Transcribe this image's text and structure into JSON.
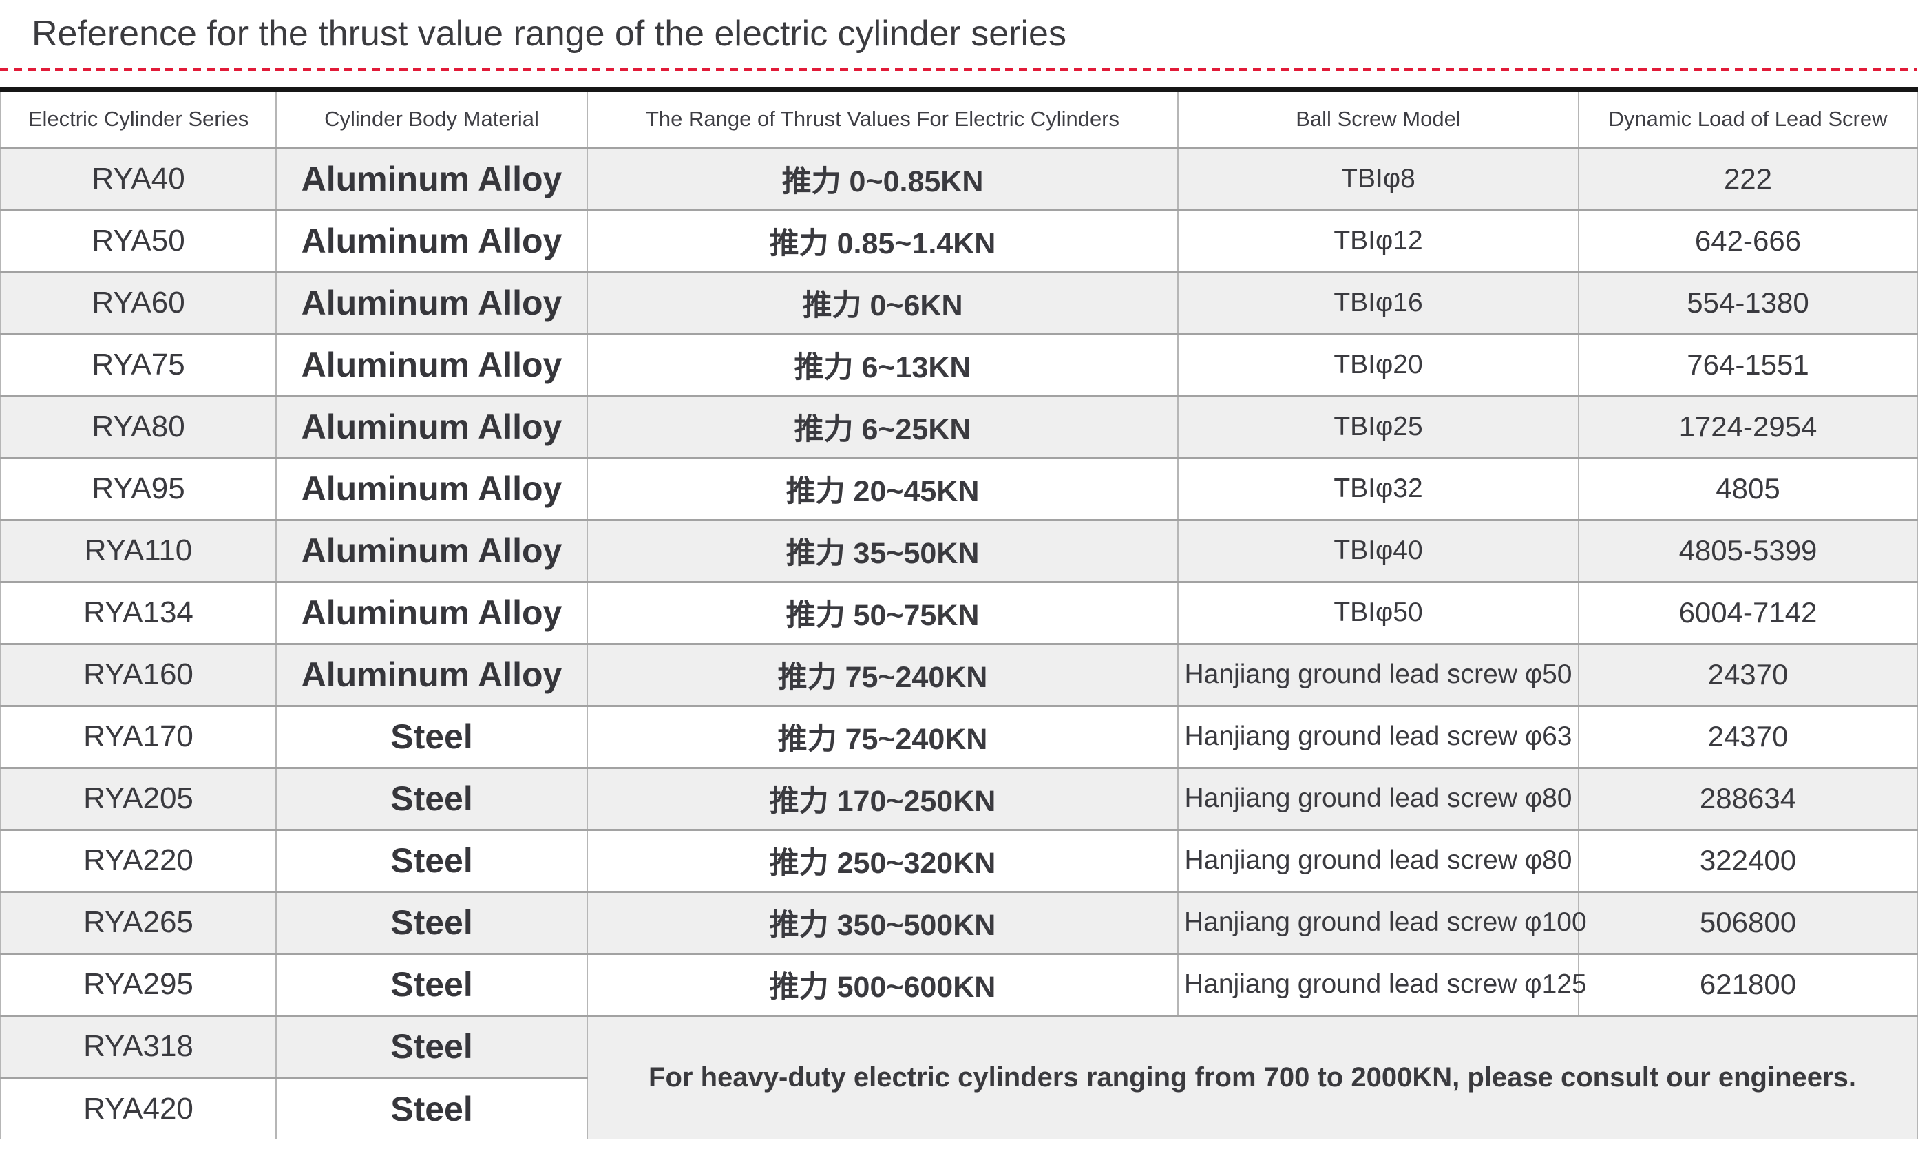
{
  "page": {
    "title": "Reference for the thrust value range of the electric cylinder series",
    "accent_color": "#e11b38"
  },
  "table": {
    "headers": [
      "Electric Cylinder Series",
      "Cylinder Body Material",
      "The Range of Thrust Values For Electric Cylinders",
      "Ball Screw Model",
      "Dynamic Load of Lead Screw"
    ],
    "rows": [
      {
        "series": "RYA40",
        "material": "Aluminum Alloy",
        "thrust": "推力 0~0.85KN",
        "screw": "TBIφ8",
        "load": "222"
      },
      {
        "series": "RYA50",
        "material": "Aluminum Alloy",
        "thrust": "推力 0.85~1.4KN",
        "screw": "TBIφ12",
        "load": "642-666"
      },
      {
        "series": "RYA60",
        "material": "Aluminum Alloy",
        "thrust": "推力 0~6KN",
        "screw": "TBIφ16",
        "load": "554-1380"
      },
      {
        "series": "RYA75",
        "material": "Aluminum Alloy",
        "thrust": "推力 6~13KN",
        "screw": "TBIφ20",
        "load": "764-1551"
      },
      {
        "series": "RYA80",
        "material": "Aluminum Alloy",
        "thrust": "推力 6~25KN",
        "screw": "TBIφ25",
        "load": "1724-2954"
      },
      {
        "series": "RYA95",
        "material": "Aluminum Alloy",
        "thrust": "推力 20~45KN",
        "screw": "TBIφ32",
        "load": "4805"
      },
      {
        "series": "RYA110",
        "material": "Aluminum Alloy",
        "thrust": "推力 35~50KN",
        "screw": "TBIφ40",
        "load": "4805-5399"
      },
      {
        "series": "RYA134",
        "material": "Aluminum Alloy",
        "thrust": "推力 50~75KN",
        "screw": "TBIφ50",
        "load": "6004-7142"
      },
      {
        "series": "RYA160",
        "material": "Aluminum Alloy",
        "thrust": "推力 75~240KN",
        "screw": "Hanjiang ground lead screw φ50",
        "load": "24370"
      },
      {
        "series": "RYA170",
        "material": "Steel",
        "thrust": "推力 75~240KN",
        "screw": "Hanjiang ground lead screw φ63",
        "load": "24370"
      },
      {
        "series": "RYA205",
        "material": "Steel",
        "thrust": "推力 170~250KN",
        "screw": "Hanjiang ground lead screw φ80",
        "load": "288634"
      },
      {
        "series": "RYA220",
        "material": "Steel",
        "thrust": "推力 250~320KN",
        "screw": "Hanjiang ground lead screw φ80",
        "load": "322400"
      },
      {
        "series": "RYA265",
        "material": "Steel",
        "thrust": "推力 350~500KN",
        "screw": "Hanjiang ground lead screw φ100",
        "load": "506800"
      },
      {
        "series": "RYA295",
        "material": "Steel",
        "thrust": "推力 500~600KN",
        "screw": "Hanjiang ground lead screw φ125",
        "load": "621800"
      }
    ],
    "footer_rows": [
      {
        "series": "RYA318",
        "material": "Steel"
      },
      {
        "series": "RYA420",
        "material": "Steel"
      }
    ],
    "note": "For heavy-duty electric cylinders ranging from 700 to 2000KN, please consult our engineers."
  }
}
